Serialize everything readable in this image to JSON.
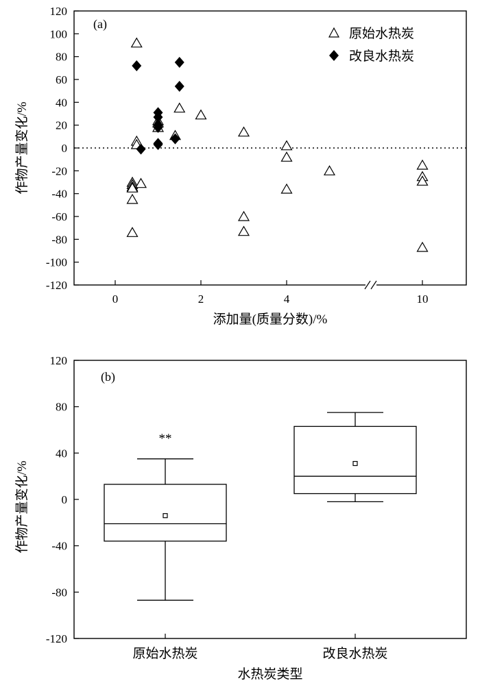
{
  "chart_data": [
    {
      "type": "scatter",
      "panel_label": "(a)",
      "xlabel": "添加量(质量分数)/%",
      "ylabel": "作物产量变化/%",
      "ylim": [
        -120,
        120
      ],
      "yticks": [
        120,
        100,
        80,
        60,
        40,
        20,
        0,
        -20,
        -40,
        -60,
        -80,
        -100,
        -120
      ],
      "xticks": [
        0,
        2,
        4,
        10
      ],
      "x_axis_break": true,
      "reference_line": {
        "y": 0,
        "style": "dotted"
      },
      "legend_position": "top-right",
      "series": [
        {
          "name": "原始水热炭",
          "marker": "open-triangle",
          "points": [
            [
              0.5,
              92
            ],
            [
              0.5,
              6
            ],
            [
              0.5,
              3
            ],
            [
              0.4,
              -30
            ],
            [
              0.4,
              -32
            ],
            [
              0.4,
              -34
            ],
            [
              0.4,
              -35
            ],
            [
              0.4,
              -45
            ],
            [
              0.6,
              -31
            ],
            [
              0.4,
              -74
            ],
            [
              1.0,
              24
            ],
            [
              1.0,
              22
            ],
            [
              1.0,
              18
            ],
            [
              1.4,
              11
            ],
            [
              1.5,
              35
            ],
            [
              2.0,
              29
            ],
            [
              3.0,
              14
            ],
            [
              3.0,
              -60
            ],
            [
              3.0,
              -73
            ],
            [
              4.0,
              2
            ],
            [
              4.0,
              -8
            ],
            [
              4.0,
              -36
            ],
            [
              5.0,
              -20
            ],
            [
              10,
              -15
            ],
            [
              10,
              -25
            ],
            [
              10,
              -29
            ],
            [
              10,
              -87
            ]
          ]
        },
        {
          "name": "改良水热炭",
          "marker": "filled-diamond",
          "points": [
            [
              0.5,
              72
            ],
            [
              0.6,
              -1
            ],
            [
              1.0,
              31
            ],
            [
              1.0,
              27
            ],
            [
              1.0,
              20
            ],
            [
              1.0,
              18
            ],
            [
              1.0,
              4
            ],
            [
              1.0,
              3
            ],
            [
              1.5,
              75
            ],
            [
              1.5,
              54
            ],
            [
              1.4,
              8
            ]
          ]
        }
      ]
    },
    {
      "type": "box",
      "panel_label": "(b)",
      "xlabel": "水热炭类型",
      "ylabel": "作物产量变化/%",
      "ylim": [
        -120,
        120
      ],
      "yticks": [
        120,
        80,
        40,
        0,
        -40,
        -80,
        -120
      ],
      "categories": [
        "原始水热炭",
        "改良水热炭"
      ],
      "boxes": [
        {
          "category": "原始水热炭",
          "whisker_low": -87,
          "q1": -36,
          "median": -21,
          "q3": 13,
          "whisker_high": 35,
          "mean": -14,
          "annotation": "**"
        },
        {
          "category": "改良水热炭",
          "whisker_low": -2,
          "q1": 5,
          "median": 20,
          "q3": 63,
          "whisker_high": 75,
          "mean": 31,
          "annotation": ""
        }
      ]
    }
  ]
}
